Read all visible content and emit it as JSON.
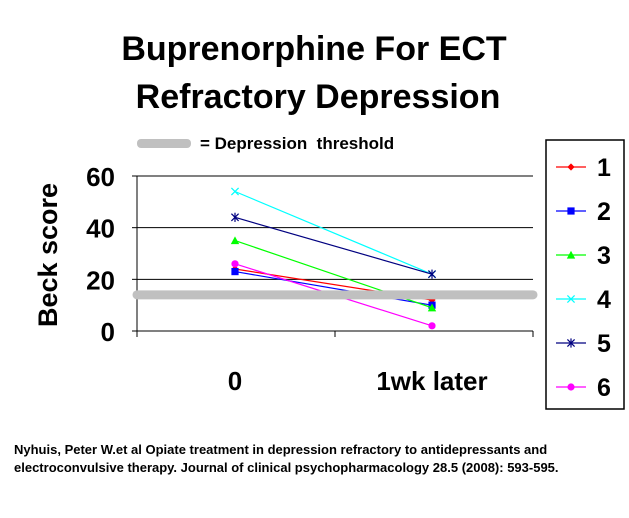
{
  "slide": {
    "title_line1": "Buprenorphine For ECT",
    "title_line2": "Refractory Depression",
    "threshold_note": "= Depression  threshold",
    "citation": "Nyhuis, Peter W.et al Opiate treatment in depression refractory to antidepressants and electroconvulsive therapy. Journal of clinical psychopharmacology 28.5 (2008): 593-595."
  },
  "chart_data": {
    "type": "line",
    "title": "",
    "xlabel": "",
    "ylabel": "Beck score",
    "categories": [
      "0",
      "1wk later"
    ],
    "ylim": [
      0,
      60
    ],
    "yticks": [
      0,
      20,
      40,
      60
    ],
    "grid": true,
    "legend_position": "right",
    "threshold": {
      "value": 14,
      "label": "= Depression  threshold",
      "color": "#c0c0c0"
    },
    "series": [
      {
        "name": "1",
        "values": [
          24,
          12
        ],
        "color": "#ff0000",
        "marker": "diamond"
      },
      {
        "name": "2",
        "values": [
          23,
          10
        ],
        "color": "#0000ff",
        "marker": "square"
      },
      {
        "name": "3",
        "values": [
          35,
          9
        ],
        "color": "#00ff00",
        "marker": "triangle"
      },
      {
        "name": "4",
        "values": [
          54,
          22
        ],
        "color": "#00ffff",
        "marker": "x"
      },
      {
        "name": "5",
        "values": [
          44,
          22
        ],
        "color": "#000080",
        "marker": "star"
      },
      {
        "name": "6",
        "values": [
          26,
          2
        ],
        "color": "#ff00ff",
        "marker": "circle"
      }
    ]
  }
}
